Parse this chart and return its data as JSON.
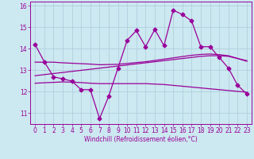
{
  "x": [
    0,
    1,
    2,
    3,
    4,
    5,
    6,
    7,
    8,
    9,
    10,
    11,
    12,
    13,
    14,
    15,
    16,
    17,
    18,
    19,
    20,
    21,
    22,
    23
  ],
  "windchill": [
    14.2,
    13.4,
    12.7,
    12.6,
    12.5,
    12.1,
    12.1,
    10.75,
    11.8,
    13.1,
    14.4,
    14.85,
    14.1,
    14.9,
    14.15,
    15.8,
    15.6,
    15.3,
    14.1,
    14.1,
    13.6,
    13.1,
    12.3,
    11.9
  ],
  "trendline1": [
    13.38,
    13.38,
    13.38,
    13.35,
    13.33,
    13.31,
    13.29,
    13.26,
    13.27,
    13.28,
    13.32,
    13.36,
    13.4,
    13.46,
    13.52,
    13.58,
    13.64,
    13.7,
    13.74,
    13.76,
    13.73,
    13.68,
    13.55,
    13.42
  ],
  "trendline2": [
    12.75,
    12.8,
    12.85,
    12.9,
    12.95,
    13.0,
    13.05,
    13.1,
    13.15,
    13.2,
    13.25,
    13.3,
    13.35,
    13.4,
    13.45,
    13.5,
    13.55,
    13.6,
    13.65,
    13.68,
    13.68,
    13.65,
    13.55,
    13.45
  ],
  "trendline3": [
    12.4,
    12.42,
    12.44,
    12.46,
    12.45,
    12.43,
    12.4,
    12.38,
    12.38,
    12.38,
    12.38,
    12.38,
    12.38,
    12.36,
    12.34,
    12.3,
    12.26,
    12.22,
    12.18,
    12.14,
    12.1,
    12.06,
    12.02,
    11.98
  ],
  "line_color": "#990099",
  "bg_color": "#cce8f0",
  "grid_color": "#aaccdd",
  "xlabel": "Windchill (Refroidissement éolien,°C)",
  "ylim": [
    10.5,
    16.2
  ],
  "xlim": [
    -0.5,
    23.5
  ],
  "yticks": [
    11,
    12,
    13,
    14,
    15,
    16
  ],
  "xticks": [
    0,
    1,
    2,
    3,
    4,
    5,
    6,
    7,
    8,
    9,
    10,
    11,
    12,
    13,
    14,
    15,
    16,
    17,
    18,
    19,
    20,
    21,
    22,
    23
  ],
  "tick_fontsize": 5.5,
  "xlabel_fontsize": 5.5
}
